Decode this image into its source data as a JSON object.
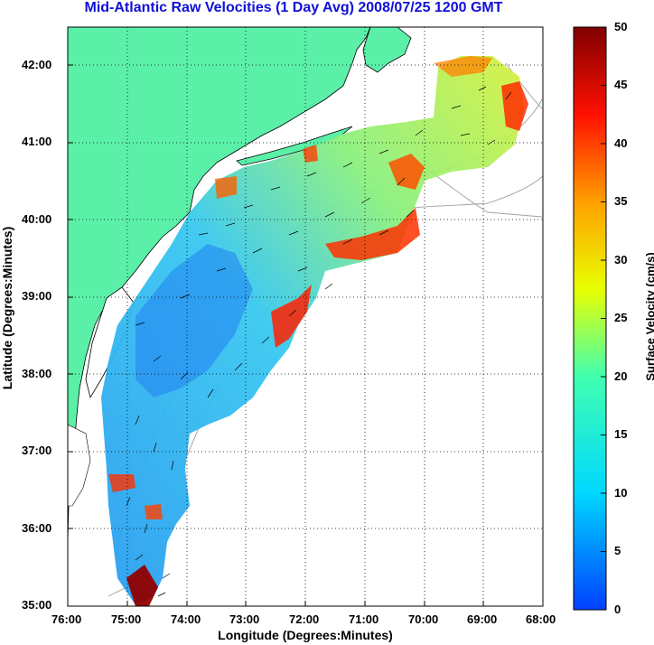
{
  "title": "Mid-Atlantic Raw Velocities (1 Day Avg) 2008/07/25 1200 GMT",
  "x_axis": {
    "label": "Longitude (Degrees:Minutes)",
    "ticks": [
      "76:00",
      "75:00",
      "74:00",
      "73:00",
      "72:00",
      "71:00",
      "70:00",
      "69:00",
      "68:00"
    ],
    "tick_values": [
      -76,
      -75,
      -74,
      -73,
      -72,
      -71,
      -70,
      -69,
      -68
    ]
  },
  "y_axis": {
    "label": "Latitude (Degrees:Minutes)",
    "ticks": [
      "35:00",
      "36:00",
      "37:00",
      "38:00",
      "39:00",
      "40:00",
      "41:00",
      "42:00"
    ],
    "tick_values": [
      35,
      36,
      37,
      38,
      39,
      40,
      41,
      42
    ]
  },
  "map_extent": {
    "lon": [
      -76,
      -68
    ],
    "lat": [
      35,
      42.5
    ]
  },
  "grid": "dotted",
  "colorbar": {
    "label": "Surface Velocity (cm/s)",
    "ticks": [
      "0",
      "5",
      "10",
      "15",
      "20",
      "25",
      "30",
      "35",
      "40",
      "45",
      "50"
    ],
    "range": [
      0,
      50
    ]
  },
  "colors": {
    "title": "#1010d8",
    "land": "#5bf0a8",
    "ocean_background": "#ffffff",
    "coastline": "#000000",
    "bathymetry": "#a0a0a0",
    "vectors": "#000000"
  }
}
